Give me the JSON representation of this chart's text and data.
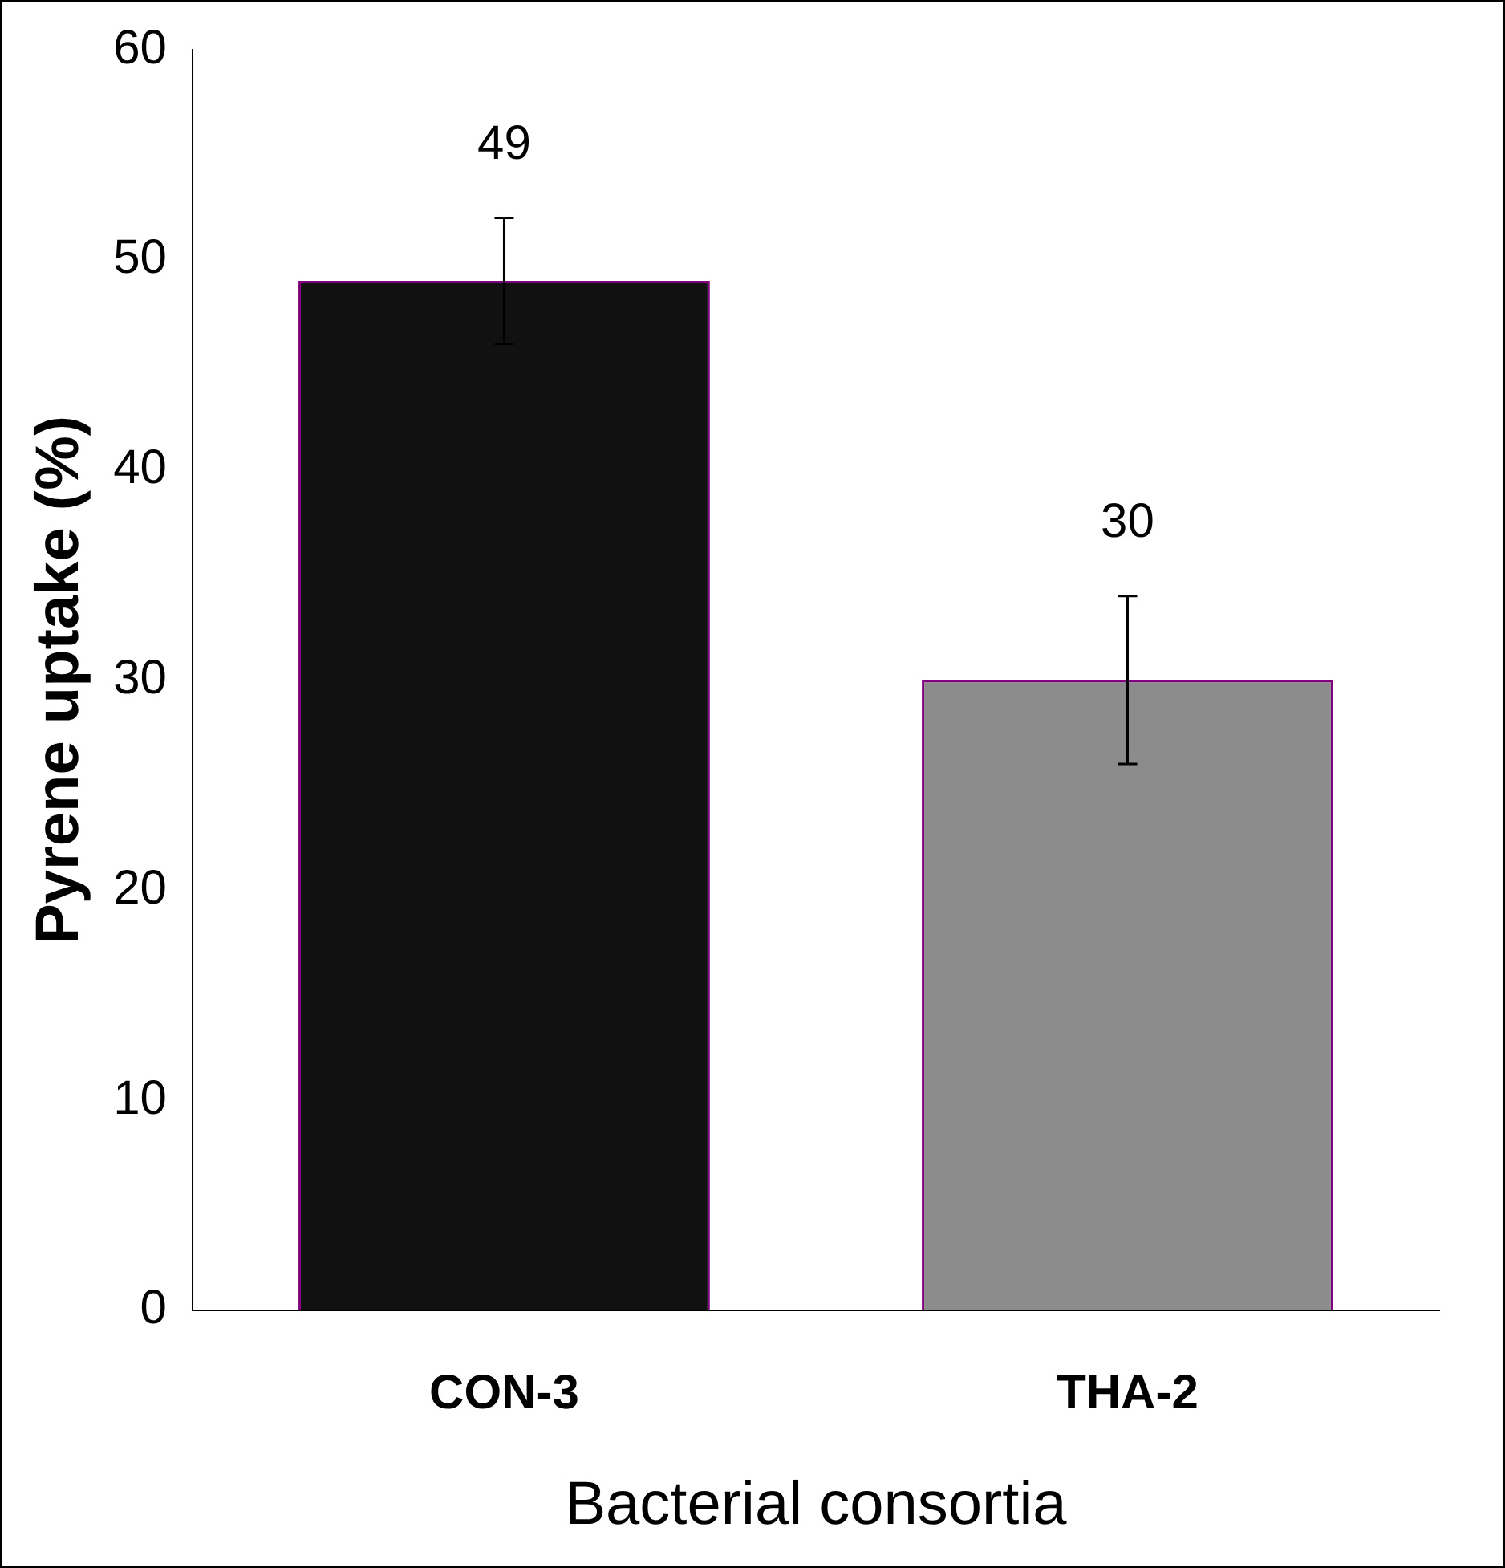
{
  "chart_data": {
    "type": "bar",
    "xlabel": "Bacterial consortia",
    "ylabel": "Pyrene uptake (%)",
    "categories": [
      "CON-3",
      "THA-2"
    ],
    "values": [
      49,
      30
    ],
    "colors": [
      "#111111",
      "#8c8c8c"
    ],
    "errors": [
      3,
      4
    ],
    "data_labels": true,
    "ylim": [
      0,
      60
    ],
    "yticks": [
      0,
      10,
      20,
      30,
      40,
      50,
      60
    ],
    "grid": false,
    "legend": false
  }
}
